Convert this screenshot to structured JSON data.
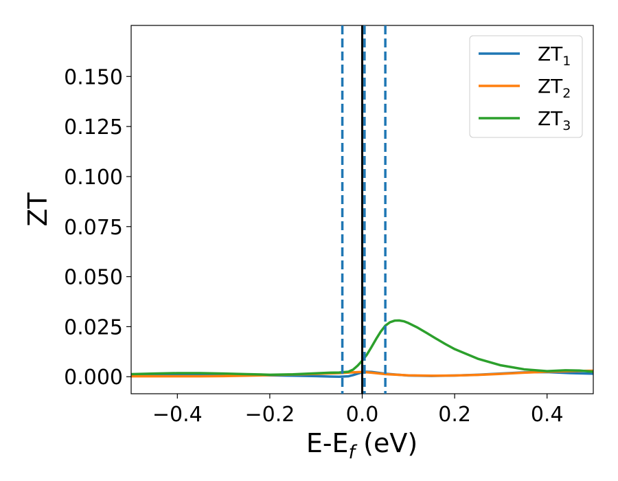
{
  "chart_data": {
    "type": "line",
    "title": "",
    "xlabel": {
      "main": "E-E",
      "sub": "f",
      "suffix": " (eV)"
    },
    "ylabel": "ZT",
    "xlim": [
      -0.5,
      0.5
    ],
    "ylim": [
      -0.0085,
      0.1755
    ],
    "xticks": [
      -0.4,
      -0.2,
      0.0,
      0.2,
      0.4
    ],
    "xtick_labels": [
      "−0.4",
      "−0.2",
      "0.0",
      "0.2",
      "0.4"
    ],
    "yticks": [
      0.0,
      0.025,
      0.05,
      0.075,
      0.1,
      0.125,
      0.15
    ],
    "ytick_labels": [
      "0.000",
      "0.025",
      "0.050",
      "0.075",
      "0.100",
      "0.125",
      "0.150"
    ],
    "grid": false,
    "legend_position": "top-right",
    "reference_lines": [
      {
        "x": 0.0,
        "style": "solid",
        "color": "#000000"
      },
      {
        "x": -0.043,
        "style": "dashed",
        "color": "#1f77b4"
      },
      {
        "x": 0.005,
        "style": "dashed",
        "color": "#1f77b4"
      },
      {
        "x": 0.05,
        "style": "dashed",
        "color": "#1f77b4"
      }
    ],
    "series": [
      {
        "name": "ZT",
        "name_sub": "1",
        "color": "#1f77b4",
        "x": [
          -0.5,
          -0.45,
          -0.4,
          -0.35,
          -0.3,
          -0.25,
          -0.2,
          -0.15,
          -0.1,
          -0.07,
          -0.05,
          -0.03,
          -0.02,
          -0.01,
          0.0,
          0.01,
          0.02,
          0.05,
          0.1,
          0.15,
          0.2,
          0.25,
          0.3,
          0.35,
          0.4,
          0.45,
          0.5
        ],
        "y": [
          0.001,
          0.0011,
          0.0012,
          0.0012,
          0.0011,
          0.0009,
          0.0007,
          0.0005,
          0.0003,
          0.0001,
          0.0,
          0.0002,
          0.0008,
          0.0015,
          0.0022,
          0.0025,
          0.0024,
          0.0015,
          0.0006,
          0.0004,
          0.0006,
          0.001,
          0.0016,
          0.0022,
          0.0023,
          0.0018,
          0.0015
        ]
      },
      {
        "name": "ZT",
        "name_sub": "2",
        "color": "#ff7f0e",
        "x": [
          -0.5,
          -0.45,
          -0.4,
          -0.35,
          -0.3,
          -0.25,
          -0.2,
          -0.15,
          -0.1,
          -0.05,
          -0.02,
          0.0,
          0.02,
          0.05,
          0.1,
          0.15,
          0.2,
          0.25,
          0.3,
          0.35,
          0.4,
          0.45,
          0.5
        ],
        "y": [
          0.0002,
          0.0002,
          0.0002,
          0.0002,
          0.0003,
          0.0005,
          0.0008,
          0.0011,
          0.0014,
          0.0018,
          0.0022,
          0.0024,
          0.002,
          0.0013,
          0.0007,
          0.0005,
          0.0006,
          0.0009,
          0.0014,
          0.002,
          0.0025,
          0.0028,
          0.003
        ]
      },
      {
        "name": "ZT",
        "name_sub": "3",
        "color": "#2ca02c",
        "x": [
          -0.5,
          -0.45,
          -0.4,
          -0.35,
          -0.3,
          -0.25,
          -0.2,
          -0.15,
          -0.1,
          -0.07,
          -0.05,
          -0.03,
          -0.02,
          -0.01,
          0.0,
          0.01,
          0.02,
          0.03,
          0.04,
          0.05,
          0.06,
          0.07,
          0.08,
          0.09,
          0.1,
          0.12,
          0.14,
          0.16,
          0.18,
          0.2,
          0.25,
          0.3,
          0.35,
          0.4,
          0.44,
          0.47,
          0.5
        ],
        "y": [
          0.0013,
          0.0016,
          0.0018,
          0.0018,
          0.0016,
          0.0013,
          0.001,
          0.0012,
          0.0017,
          0.002,
          0.0021,
          0.0025,
          0.0035,
          0.0055,
          0.008,
          0.011,
          0.0148,
          0.0188,
          0.0225,
          0.0255,
          0.0272,
          0.028,
          0.0281,
          0.0277,
          0.0268,
          0.0245,
          0.0218,
          0.019,
          0.0163,
          0.0138,
          0.009,
          0.0057,
          0.0037,
          0.0028,
          0.0032,
          0.0031,
          0.0025
        ]
      }
    ]
  }
}
